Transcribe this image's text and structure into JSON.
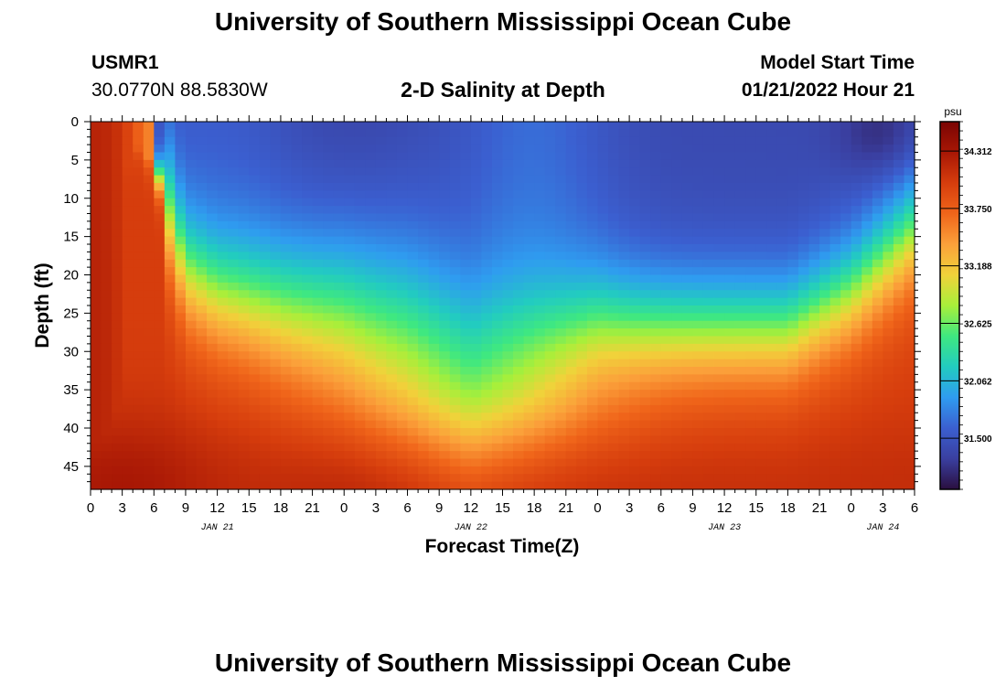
{
  "page": {
    "title": "University of Southern Mississippi Ocean Cube",
    "footer_title": "University of Southern Mississippi Ocean Cube",
    "station": "USMR1",
    "coords": "30.0770N  88.5830W",
    "plot_title": "2-D Salinity at Depth",
    "model_label": "Model Start Time",
    "model_time": "01/21/2022 Hour 21"
  },
  "chart_data": {
    "type": "heatmap",
    "title": "2-D Salinity at Depth",
    "xlabel": "Forecast Time(Z)",
    "ylabel": "Depth (ft)",
    "x_tick_labels": [
      "0",
      "3",
      "6",
      "9",
      "12",
      "15",
      "18",
      "21",
      "0",
      "3",
      "6",
      "9",
      "12",
      "15",
      "18",
      "21",
      "0",
      "3",
      "6",
      "9",
      "12",
      "15",
      "18",
      "21",
      "0",
      "3",
      "6"
    ],
    "x_date_labels": [
      {
        "label": "JAN 21",
        "at_tick": 4
      },
      {
        "label": "JAN 22",
        "at_tick": 12
      },
      {
        "label": "JAN 23",
        "at_tick": 20
      },
      {
        "label": "JAN 24",
        "at_tick": 25
      }
    ],
    "x_range_hours": [
      0,
      78
    ],
    "y_ticks": [
      0,
      5,
      10,
      15,
      20,
      25,
      30,
      35,
      40,
      45
    ],
    "y_range_ft": [
      0,
      48
    ],
    "y_inverted": true,
    "colorbar": {
      "unit": "psu",
      "range": [
        31.0,
        34.6
      ],
      "tick_values": [
        34.312,
        33.75,
        33.188,
        32.625,
        32.062,
        31.5
      ],
      "tick_labels": [
        "34.312",
        "33.750",
        "33.188",
        "32.625",
        "32.062",
        "31.500"
      ],
      "colors": [
        "#2a0f3f",
        "#3a3fa0",
        "#3b5fd0",
        "#2f9cf0",
        "#22ccc0",
        "#3fe880",
        "#a8ef3a",
        "#f1d23a",
        "#fba03a",
        "#f0651a",
        "#d63d0d",
        "#a81705",
        "#7a0403"
      ]
    },
    "interface_depth_ft": [
      {
        "hour": 0,
        "depth": 0
      },
      {
        "hour": 5,
        "depth": 0
      },
      {
        "hour": 9,
        "depth": 19
      },
      {
        "hour": 12,
        "depth": 22
      },
      {
        "hour": 18,
        "depth": 24
      },
      {
        "hour": 24,
        "depth": 25
      },
      {
        "hour": 30,
        "depth": 28
      },
      {
        "hour": 36,
        "depth": 33
      },
      {
        "hour": 42,
        "depth": 30
      },
      {
        "hour": 48,
        "depth": 27
      },
      {
        "hour": 54,
        "depth": 27
      },
      {
        "hour": 60,
        "depth": 27
      },
      {
        "hour": 66,
        "depth": 27
      },
      {
        "hour": 72,
        "depth": 22
      },
      {
        "hour": 78,
        "depth": 14
      }
    ]
  }
}
